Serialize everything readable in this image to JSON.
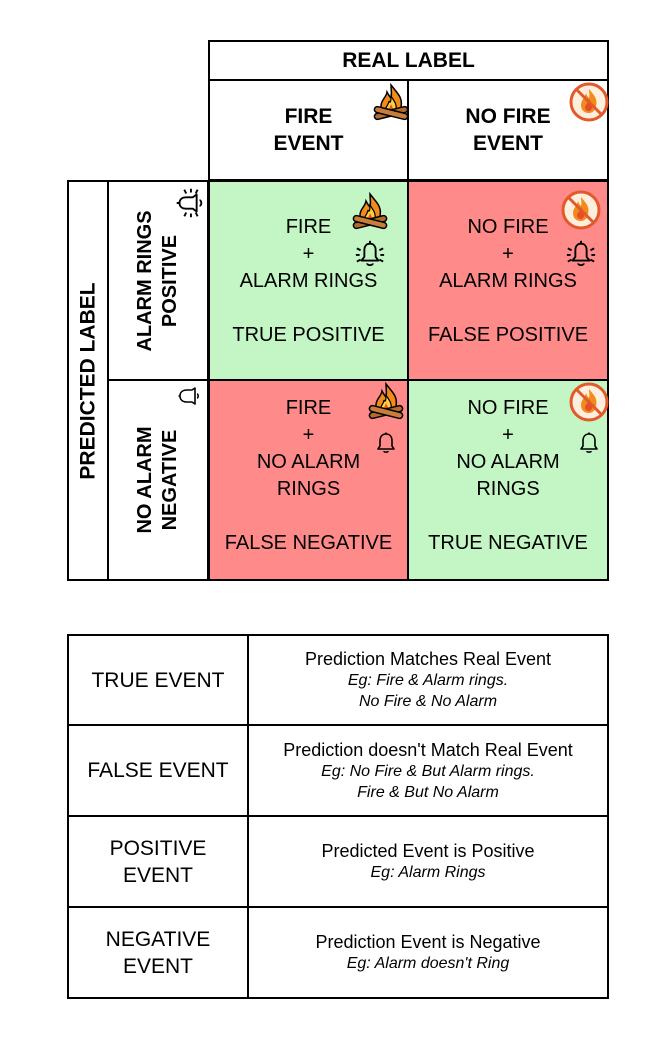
{
  "matrix": {
    "real_label": "REAL LABEL",
    "predicted_label": "PREDICTED  LABEL",
    "columns": [
      {
        "line1": "FIRE",
        "line2": "EVENT",
        "icon": "campfire-icon"
      },
      {
        "line1": "NO FIRE",
        "line2": "EVENT",
        "icon": "no-fire-icon"
      }
    ],
    "rows": [
      {
        "line1": "ALARM RINGS",
        "line2": "POSITIVE",
        "icon": "ringing-bell-icon"
      },
      {
        "line1": "NO ALARM",
        "line2": "NEGATIVE",
        "icon": "bell-icon"
      }
    ],
    "cells": {
      "tp": {
        "fire": "FIRE",
        "plus": "+",
        "alarm": "ALARM RINGS",
        "result": "TRUE POSITIVE",
        "color": "#c4f5c4"
      },
      "fp": {
        "fire": "NO FIRE",
        "plus": "+",
        "alarm": "ALARM RINGS",
        "result": "FALSE POSITIVE",
        "color": "#ff8a8a"
      },
      "fn": {
        "fire": "FIRE",
        "plus": "+",
        "alarm1": "NO ALARM",
        "alarm2": "RINGS",
        "result": "FALSE NEGATIVE",
        "color": "#ff8a8a"
      },
      "tn": {
        "fire": "NO FIRE",
        "plus": "+",
        "alarm1": "NO ALARM",
        "alarm2": "RINGS",
        "result": "TRUE NEGATIVE",
        "color": "#c4f5c4"
      }
    }
  },
  "definitions": [
    {
      "term1": "TRUE EVENT",
      "term2": "",
      "desc": "Prediction Matches Real Event",
      "ex1": "Eg: Fire & Alarm rings.",
      "ex2": "No Fire & No Alarm"
    },
    {
      "term1": "FALSE EVENT",
      "term2": "",
      "desc": "Prediction doesn't Match Real Event",
      "ex1": "Eg: No Fire & But Alarm rings.",
      "ex2": "Fire & But No Alarm"
    },
    {
      "term1": "POSITIVE",
      "term2": "EVENT",
      "desc": "Predicted Event is Positive",
      "ex1": "Eg: Alarm Rings",
      "ex2": ""
    },
    {
      "term1": "NEGATIVE",
      "term2": "EVENT",
      "desc": "Prediction Event is Negative",
      "ex1": "Eg: Alarm doesn't Ring",
      "ex2": ""
    }
  ]
}
